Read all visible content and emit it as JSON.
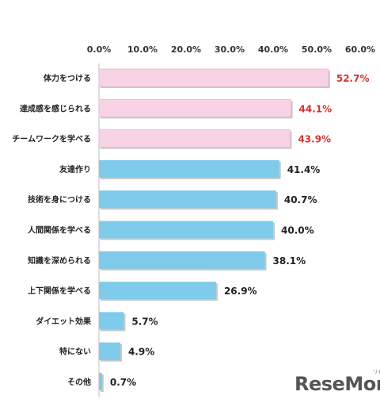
{
  "chart_data": {
    "type": "bar",
    "orientation": "horizontal",
    "title": "",
    "xlabel": "",
    "ylabel": "",
    "xlim": [
      0,
      60
    ],
    "x_ticks": [
      "0.0%",
      "10.0%",
      "20.0%",
      "30.0%",
      "40.0%",
      "50.0%",
      "60.0%"
    ],
    "grid": false,
    "categories": [
      "体力をつける",
      "達成感を感じられる",
      "チームワークを学べる",
      "友達作り",
      "技術を身につける",
      "人間関係を学べる",
      "知識を深められる",
      "上下関係を学べる",
      "ダイエット効果",
      "特にない",
      "その他"
    ],
    "values": [
      52.7,
      44.1,
      43.9,
      41.4,
      40.7,
      40.0,
      38.1,
      26.9,
      5.7,
      4.9,
      0.7
    ],
    "value_labels": [
      "52.7%",
      "44.1%",
      "43.9%",
      "41.4%",
      "40.7%",
      "40.0%",
      "38.1%",
      "26.9%",
      "5.7%",
      "4.9%",
      "0.7%"
    ],
    "highlight_count": 3,
    "colors": {
      "highlight_bar": "#f8d3e6",
      "highlight_border": "#e8b8d0",
      "bar": "#7fcbeb",
      "highlight_label": "#d3332f",
      "label": "#222222",
      "shadow": "#c8c8c8"
    }
  },
  "watermark": {
    "text": "ReseMom",
    "kana": "リセマム"
  }
}
